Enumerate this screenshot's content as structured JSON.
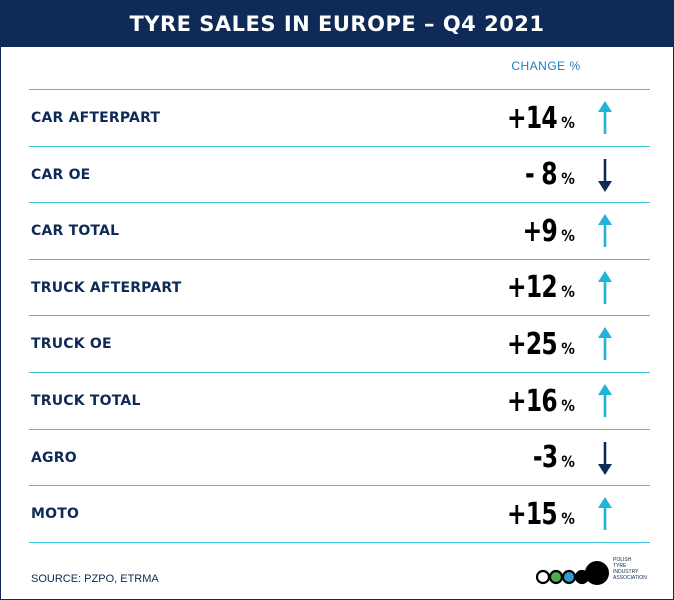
{
  "title": "TYRE SALES IN EUROPE – Q4 2021",
  "column_header": "CHANGE %",
  "source": "SOURCE: PZPO, ETRMA",
  "logo_lines": [
    "Polish",
    "Tyre",
    "Industry",
    "Association"
  ],
  "colors": {
    "navy": "#0f2a56",
    "accent": "#3cc1dc",
    "up": "#1fb4d8",
    "down": "#0f2a56"
  },
  "chart_data": {
    "type": "table",
    "title": "TYRE SALES IN EUROPE – Q4 2021",
    "columns": [
      "",
      "CHANGE %"
    ],
    "rows": [
      {
        "label": "CAR AFTERPART",
        "display": "+14",
        "value": 14,
        "direction": "up"
      },
      {
        "label": "CAR OE",
        "display": "- 8",
        "value": -8,
        "direction": "down"
      },
      {
        "label": "CAR TOTAL",
        "display": "+9",
        "value": 9,
        "direction": "up"
      },
      {
        "label": "TRUCK AFTERPART",
        "display": "+12",
        "value": 12,
        "direction": "up"
      },
      {
        "label": "TRUCK OE",
        "display": "+25",
        "value": 25,
        "direction": "up"
      },
      {
        "label": "TRUCK TOTAL",
        "display": "+16",
        "value": 16,
        "direction": "up"
      },
      {
        "label": "AGRO",
        "display": "-3",
        "value": -3,
        "direction": "down"
      },
      {
        "label": "MOTO",
        "display": "+15",
        "value": 15,
        "direction": "up"
      }
    ],
    "unit": "%"
  }
}
